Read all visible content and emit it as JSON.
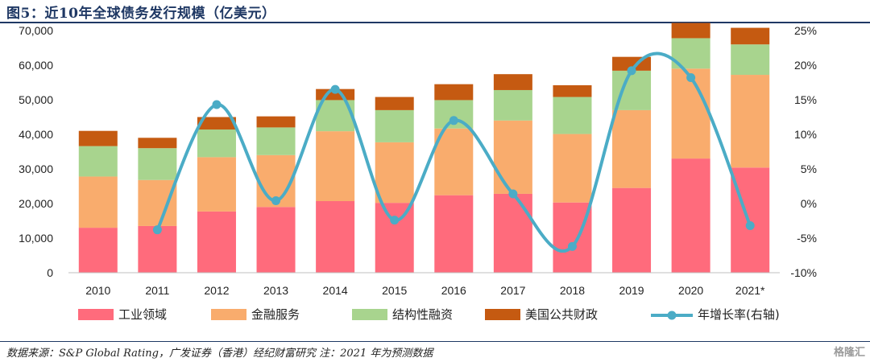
{
  "header": {
    "title": "图5：近10年全球债务发行规模（亿美元）"
  },
  "footer": {
    "source": "数据来源：S&P Global Rating，广发证券（香港）经纪财富研究  注：2021 年为预测数据",
    "watermark": "格隆汇"
  },
  "colors": {
    "industrial": "#ff6b7c",
    "financial": "#f9ac6d",
    "structured": "#a8d48e",
    "us_public": "#c55a11",
    "growth_line": "#4bacc6"
  },
  "chart_data": {
    "type": "bar",
    "stacked": true,
    "title": "",
    "xlabel": "",
    "ylabel": "",
    "categories": [
      "2010",
      "2011",
      "2012",
      "2013",
      "2014",
      "2015",
      "2016",
      "2017",
      "2018",
      "2019",
      "2020",
      "2021*"
    ],
    "ylim": [
      0,
      70000
    ],
    "yticks": [
      "0",
      "10,000",
      "20,000",
      "30,000",
      "40,000",
      "50,000",
      "60,000",
      "70,000"
    ],
    "y2lim": [
      -10,
      25
    ],
    "y2ticks": [
      "-10%",
      "-5%",
      "0%",
      "5%",
      "10%",
      "15%",
      "20%",
      "25%"
    ],
    "series": [
      {
        "name": "工业领域",
        "values": [
          13000,
          13500,
          17700,
          19000,
          20700,
          20200,
          22400,
          22800,
          20300,
          24500,
          33000,
          30400
        ]
      },
      {
        "name": "金融服务",
        "values": [
          14800,
          13300,
          15700,
          15000,
          20200,
          17500,
          19300,
          21200,
          19800,
          22500,
          26000,
          26800
        ]
      },
      {
        "name": "结构性融资",
        "values": [
          8800,
          9200,
          8000,
          8000,
          9000,
          9300,
          8200,
          8800,
          10700,
          11400,
          8800,
          8800
        ]
      },
      {
        "name": "美国公共财政",
        "values": [
          4400,
          3000,
          3600,
          3200,
          3200,
          3800,
          4600,
          4600,
          3400,
          4000,
          4400,
          4800
        ]
      }
    ],
    "line_series": {
      "name": "年增长率(右轴)",
      "axis": "right",
      "values": [
        null,
        -3.8,
        14.3,
        0.4,
        16.5,
        -2.4,
        12.0,
        1.4,
        -6.2,
        19.2,
        18.2,
        -3.2
      ]
    },
    "legend_position": "bottom",
    "grid": false
  }
}
